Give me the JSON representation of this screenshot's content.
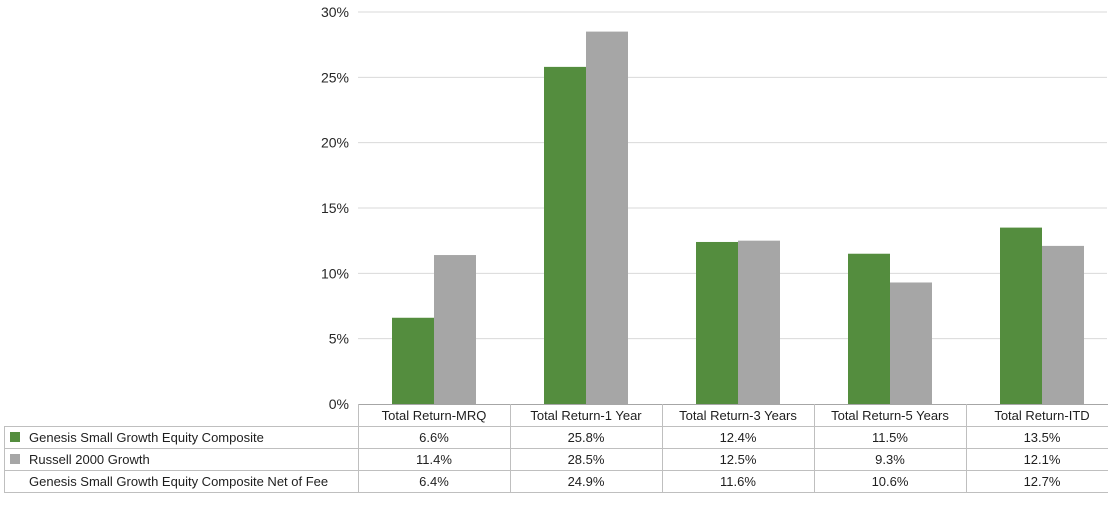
{
  "chart_data": {
    "type": "bar",
    "categories": [
      "Total Return-MRQ",
      "Total Return-1 Year",
      "Total Return-3 Years",
      "Total Return-5 Years",
      "Total Return-ITD"
    ],
    "series": [
      {
        "name": "Genesis Small Growth Equity Composite",
        "values": [
          6.6,
          25.8,
          12.4,
          11.5,
          13.5
        ],
        "labels": [
          "6.6%",
          "25.8%",
          "12.4%",
          "11.5%",
          "13.5%"
        ],
        "color": "#548d3e",
        "plotted": true
      },
      {
        "name": "Russell 2000 Growth",
        "values": [
          11.4,
          28.5,
          12.5,
          9.3,
          12.1
        ],
        "labels": [
          "11.4%",
          "28.5%",
          "12.5%",
          "9.3%",
          "12.1%"
        ],
        "color": "#a6a6a6",
        "plotted": true
      },
      {
        "name": "Genesis Small Growth Equity Composite Net of Fee",
        "values": [
          6.4,
          24.9,
          11.6,
          10.6,
          12.7
        ],
        "labels": [
          "6.4%",
          "24.9%",
          "11.6%",
          "10.6%",
          "12.7%"
        ],
        "color": "",
        "plotted": false
      }
    ],
    "y_ticks": [
      "0%",
      "5%",
      "10%",
      "15%",
      "20%",
      "25%",
      "30%"
    ],
    "ylim": [
      0,
      30
    ],
    "grid": true,
    "legend": "data-table-left",
    "gridline_color": "#d9d9d9"
  }
}
